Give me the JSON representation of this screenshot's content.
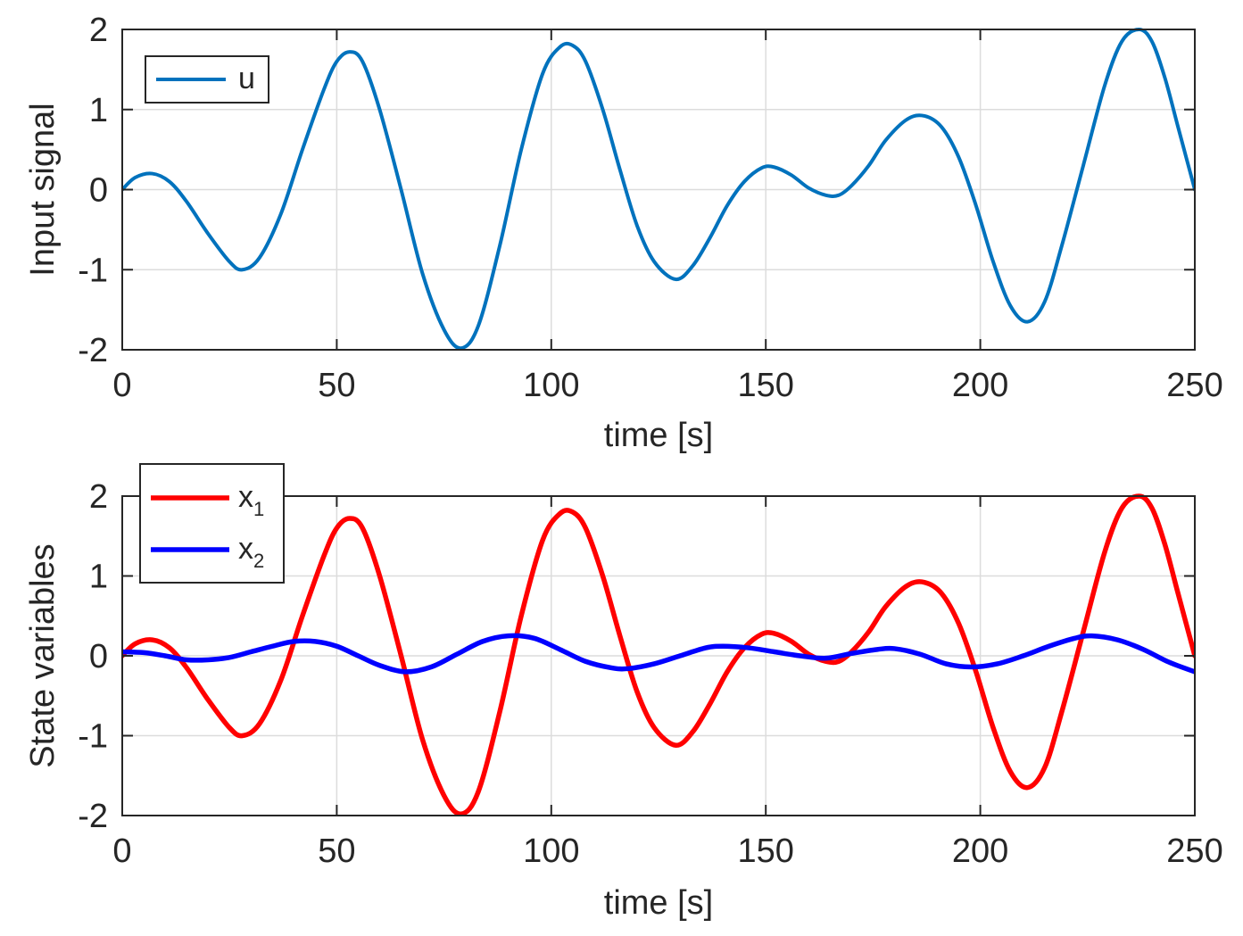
{
  "chart_data": [
    {
      "type": "line",
      "xlabel": "time [s]",
      "ylabel": "Input signal",
      "xlim": [
        0,
        250
      ],
      "ylim": [
        -2,
        2
      ],
      "xticks": [
        0,
        50,
        100,
        150,
        200,
        250
      ],
      "yticks": [
        -2,
        -1,
        0,
        1,
        2
      ],
      "grid": true,
      "legend_position": "top-left",
      "series": [
        {
          "name": "u",
          "color": "#0072BD",
          "x": [
            0,
            3,
            7,
            11,
            15,
            20,
            25,
            28,
            32,
            37,
            42,
            47,
            50,
            53,
            56,
            60,
            65,
            70,
            75,
            79,
            83,
            88,
            93,
            98,
            102,
            105,
            108,
            112,
            116,
            120,
            124,
            129,
            133,
            137,
            141,
            145,
            149,
            152,
            156,
            160,
            164,
            167,
            170,
            174,
            178,
            183,
            187,
            191,
            195,
            199,
            203,
            207,
            211,
            215,
            219,
            224,
            229,
            233,
            237,
            240,
            243,
            246,
            248,
            250
          ],
          "y": [
            0.0,
            0.15,
            0.2,
            0.1,
            -0.15,
            -0.55,
            -0.9,
            -1.0,
            -0.85,
            -0.3,
            0.5,
            1.25,
            1.6,
            1.72,
            1.6,
            1.0,
            0.0,
            -1.05,
            -1.75,
            -1.98,
            -1.7,
            -0.7,
            0.5,
            1.45,
            1.78,
            1.8,
            1.6,
            1.0,
            0.25,
            -0.45,
            -0.9,
            -1.12,
            -0.95,
            -0.6,
            -0.2,
            0.1,
            0.27,
            0.28,
            0.18,
            0.02,
            -0.07,
            -0.07,
            0.05,
            0.3,
            0.62,
            0.88,
            0.92,
            0.78,
            0.4,
            -0.2,
            -0.9,
            -1.45,
            -1.65,
            -1.4,
            -0.7,
            0.3,
            1.3,
            1.85,
            2.0,
            1.85,
            1.4,
            0.8,
            0.4,
            0.0
          ]
        }
      ]
    },
    {
      "type": "line",
      "xlabel": "time [s]",
      "ylabel": "State variables",
      "xlim": [
        0,
        250
      ],
      "ylim": [
        -2,
        2
      ],
      "xticks": [
        0,
        50,
        100,
        150,
        200,
        250
      ],
      "yticks": [
        -2,
        -1,
        0,
        1,
        2
      ],
      "grid": true,
      "legend_position": "top-left",
      "series": [
        {
          "name": "x",
          "name_sub": "1",
          "color": "#FF0000",
          "x": [
            0,
            3,
            7,
            11,
            15,
            20,
            25,
            28,
            32,
            37,
            42,
            47,
            50,
            53,
            56,
            60,
            65,
            70,
            75,
            79,
            83,
            88,
            93,
            98,
            102,
            105,
            108,
            112,
            116,
            120,
            124,
            129,
            133,
            137,
            141,
            145,
            149,
            152,
            156,
            160,
            164,
            167,
            170,
            174,
            178,
            183,
            187,
            191,
            195,
            199,
            203,
            207,
            211,
            215,
            219,
            224,
            229,
            233,
            237,
            240,
            243,
            246,
            248,
            250
          ],
          "y": [
            0.0,
            0.15,
            0.2,
            0.1,
            -0.15,
            -0.55,
            -0.9,
            -1.0,
            -0.85,
            -0.3,
            0.5,
            1.25,
            1.6,
            1.72,
            1.6,
            1.0,
            0.0,
            -1.05,
            -1.75,
            -1.98,
            -1.7,
            -0.7,
            0.5,
            1.45,
            1.78,
            1.8,
            1.6,
            1.0,
            0.25,
            -0.45,
            -0.9,
            -1.12,
            -0.95,
            -0.6,
            -0.2,
            0.1,
            0.27,
            0.28,
            0.18,
            0.02,
            -0.07,
            -0.07,
            0.05,
            0.3,
            0.62,
            0.88,
            0.92,
            0.78,
            0.4,
            -0.2,
            -0.9,
            -1.45,
            -1.65,
            -1.4,
            -0.7,
            0.3,
            1.3,
            1.85,
            2.0,
            1.85,
            1.4,
            0.8,
            0.4,
            0.0
          ]
        },
        {
          "name": "x",
          "name_sub": "2",
          "color": "#0000FF",
          "x": [
            0,
            5,
            10,
            15,
            20,
            25,
            30,
            35,
            40,
            45,
            50,
            55,
            60,
            66,
            72,
            78,
            84,
            90,
            96,
            102,
            108,
            114,
            118,
            124,
            130,
            136,
            140,
            146,
            152,
            158,
            164,
            170,
            176,
            180,
            186,
            192,
            198,
            204,
            210,
            216,
            222,
            226,
            232,
            238,
            244,
            250
          ],
          "y": [
            0.05,
            0.04,
            0.0,
            -0.05,
            -0.05,
            -0.02,
            0.05,
            0.12,
            0.18,
            0.18,
            0.12,
            0.0,
            -0.12,
            -0.2,
            -0.14,
            0.02,
            0.18,
            0.25,
            0.22,
            0.08,
            -0.07,
            -0.15,
            -0.16,
            -0.1,
            0.0,
            0.1,
            0.12,
            0.1,
            0.05,
            0.0,
            -0.03,
            0.03,
            0.08,
            0.09,
            0.02,
            -0.1,
            -0.14,
            -0.1,
            0.0,
            0.12,
            0.22,
            0.25,
            0.2,
            0.08,
            -0.08,
            -0.2
          ]
        }
      ]
    }
  ]
}
